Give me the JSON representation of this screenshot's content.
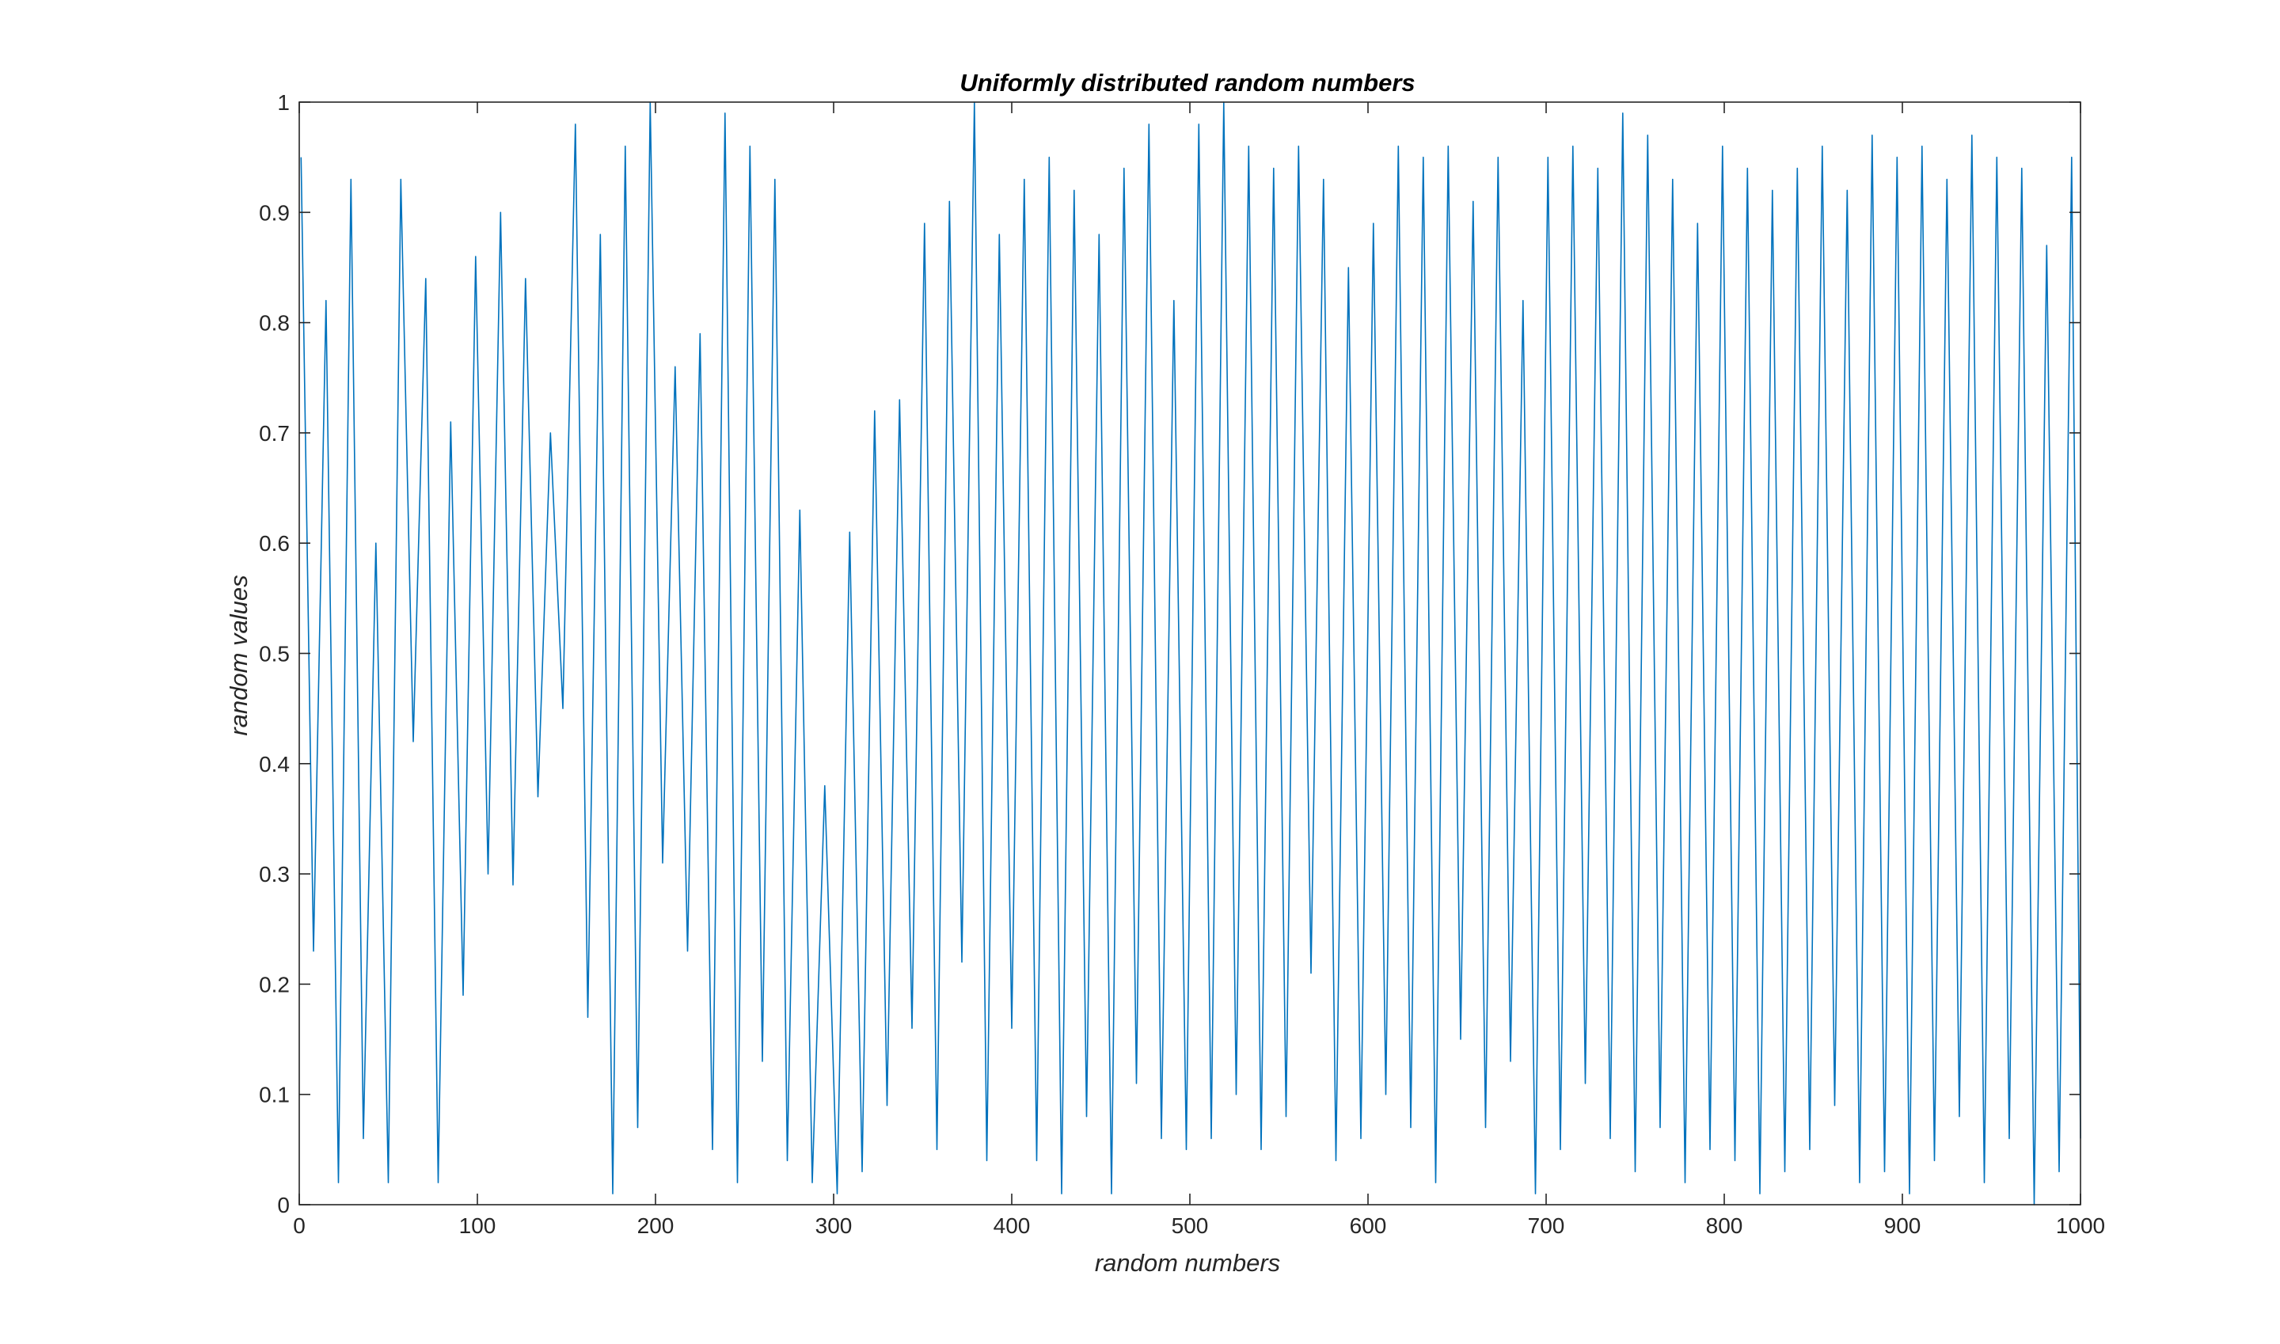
{
  "chart_data": {
    "type": "line",
    "title": "Uniformly distributed random numbers",
    "xlabel": "random numbers",
    "ylabel": "random values",
    "xlim": [
      0,
      1000
    ],
    "ylim": [
      0,
      1
    ],
    "xticks": [
      "0",
      "100",
      "200",
      "300",
      "400",
      "500",
      "600",
      "700",
      "800",
      "900",
      "1000"
    ],
    "yticks": [
      "0",
      "0.1",
      "0.2",
      "0.3",
      "0.4",
      "0.5",
      "0.6",
      "0.7",
      "0.8",
      "0.9",
      "1"
    ],
    "grid": false,
    "line_color": "#0072BD",
    "series": [
      {
        "x": [
          1,
          8,
          15,
          22,
          29,
          36,
          43,
          50,
          57,
          64,
          71,
          78,
          85,
          92,
          99,
          106,
          113,
          120,
          127,
          134,
          141,
          148,
          155,
          162,
          169,
          176,
          183,
          190,
          197,
          204,
          211,
          218,
          225,
          232,
          239,
          246,
          253,
          260,
          267,
          274,
          281,
          288,
          295,
          302,
          309,
          316,
          323,
          330,
          337,
          344,
          351,
          358,
          365,
          372,
          379,
          386,
          393,
          400,
          407,
          414,
          421,
          428,
          435,
          442,
          449,
          456,
          463,
          470,
          477,
          484,
          491,
          498,
          505,
          512,
          519,
          526,
          533,
          540,
          547,
          554,
          561,
          568,
          575,
          582,
          589,
          596,
          603,
          610,
          617,
          624,
          631,
          638,
          645,
          652,
          659,
          666,
          673,
          680,
          687,
          694,
          701,
          708,
          715,
          722,
          729,
          736,
          743,
          750,
          757,
          764,
          771,
          778,
          785,
          792,
          799,
          806,
          813,
          820,
          827,
          834,
          841,
          848,
          855,
          862,
          869,
          876,
          883,
          890,
          897,
          904,
          911,
          918,
          925,
          932,
          939,
          946,
          953,
          960,
          967,
          974,
          981,
          988,
          995,
          1000
        ],
        "y": [
          0.95,
          0.23,
          0.82,
          0.02,
          0.93,
          0.06,
          0.6,
          0.02,
          0.93,
          0.42,
          0.84,
          0.02,
          0.71,
          0.19,
          0.86,
          0.3,
          0.9,
          0.29,
          0.84,
          0.37,
          0.7,
          0.45,
          0.98,
          0.17,
          0.88,
          0.01,
          0.96,
          0.07,
          1.0,
          0.31,
          0.76,
          0.23,
          0.79,
          0.05,
          0.99,
          0.02,
          0.96,
          0.13,
          0.93,
          0.04,
          0.63,
          0.02,
          0.38,
          0.01,
          0.61,
          0.03,
          0.72,
          0.09,
          0.73,
          0.16,
          0.89,
          0.05,
          0.91,
          0.22,
          1.0,
          0.04,
          0.88,
          0.16,
          0.93,
          0.04,
          0.95,
          0.01,
          0.92,
          0.08,
          0.88,
          0.01,
          0.94,
          0.11,
          0.98,
          0.06,
          0.82,
          0.05,
          0.98,
          0.06,
          1.0,
          0.1,
          0.96,
          0.05,
          0.94,
          0.08,
          0.96,
          0.21,
          0.93,
          0.04,
          0.85,
          0.06,
          0.89,
          0.1,
          0.96,
          0.07,
          0.95,
          0.02,
          0.96,
          0.15,
          0.91,
          0.07,
          0.95,
          0.13,
          0.82,
          0.01,
          0.95,
          0.05,
          0.96,
          0.11,
          0.94,
          0.06,
          0.99,
          0.03,
          0.97,
          0.07,
          0.93,
          0.02,
          0.89,
          0.05,
          0.96,
          0.04,
          0.94,
          0.01,
          0.92,
          0.03,
          0.94,
          0.05,
          0.96,
          0.09,
          0.92,
          0.02,
          0.97,
          0.03,
          0.95,
          0.01,
          0.96,
          0.04,
          0.93,
          0.08,
          0.97,
          0.02,
          0.95,
          0.06,
          0.94,
          0.0,
          0.87,
          0.03,
          0.95,
          0.06
        ]
      }
    ]
  }
}
